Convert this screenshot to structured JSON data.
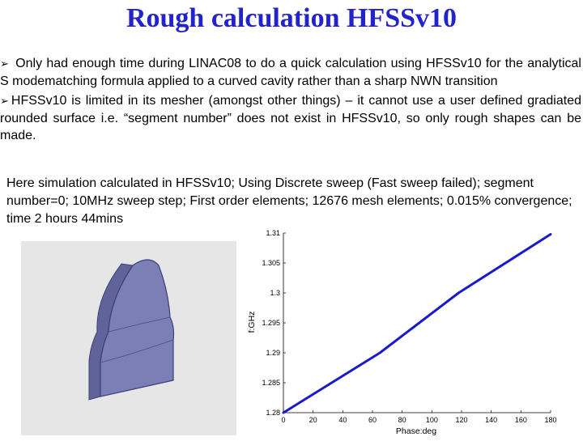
{
  "slide": {
    "title": "Rough calculation HFSSv10",
    "bullets": [
      {
        "mark": "➢",
        "text": "Only had enough time during LINAC08 to do a quick calculation using HFSSv10 for the analytical S modematching formula applied to a curved cavity rather than a sharp NWN transition"
      },
      {
        "mark": "➢",
        "text": "HFSSv10 is limited in its mesher (amongst other things) – it cannot use a user defined gradiated rounded surface i.e. “segment number” does not exist in HFSSv10, so only rough shapes can be made."
      }
    ],
    "simulation_note": "Here simulation calculated in HFSSv10; Using Discrete sweep (Fast sweep failed); segment number=0; 10MHz sweep step; First order elements; 12676 mesh elements; 0.015% convergence;  time 2 hours 44mins"
  },
  "colors": {
    "title": "#2323cc",
    "line": "#1a1acc",
    "model_face": "#7b7fb5",
    "model_edge": "#3c3f7a",
    "model_bg": "#e6e6e6"
  },
  "chart_data": {
    "type": "line",
    "xlabel": "Phase:deg",
    "ylabel": "f:GHz",
    "xlim": [
      0,
      180
    ],
    "ylim": [
      1.28,
      1.31
    ],
    "xticks": [
      0,
      20,
      40,
      60,
      80,
      100,
      120,
      140,
      160,
      180
    ],
    "yticks": [
      1.28,
      1.285,
      1.29,
      1.295,
      1.3,
      1.305,
      1.31
    ],
    "series": [
      {
        "x": [
          0,
          65,
          118,
          180
        ],
        "y": [
          1.28,
          1.29,
          1.3,
          1.3098
        ]
      }
    ],
    "grid": false
  }
}
